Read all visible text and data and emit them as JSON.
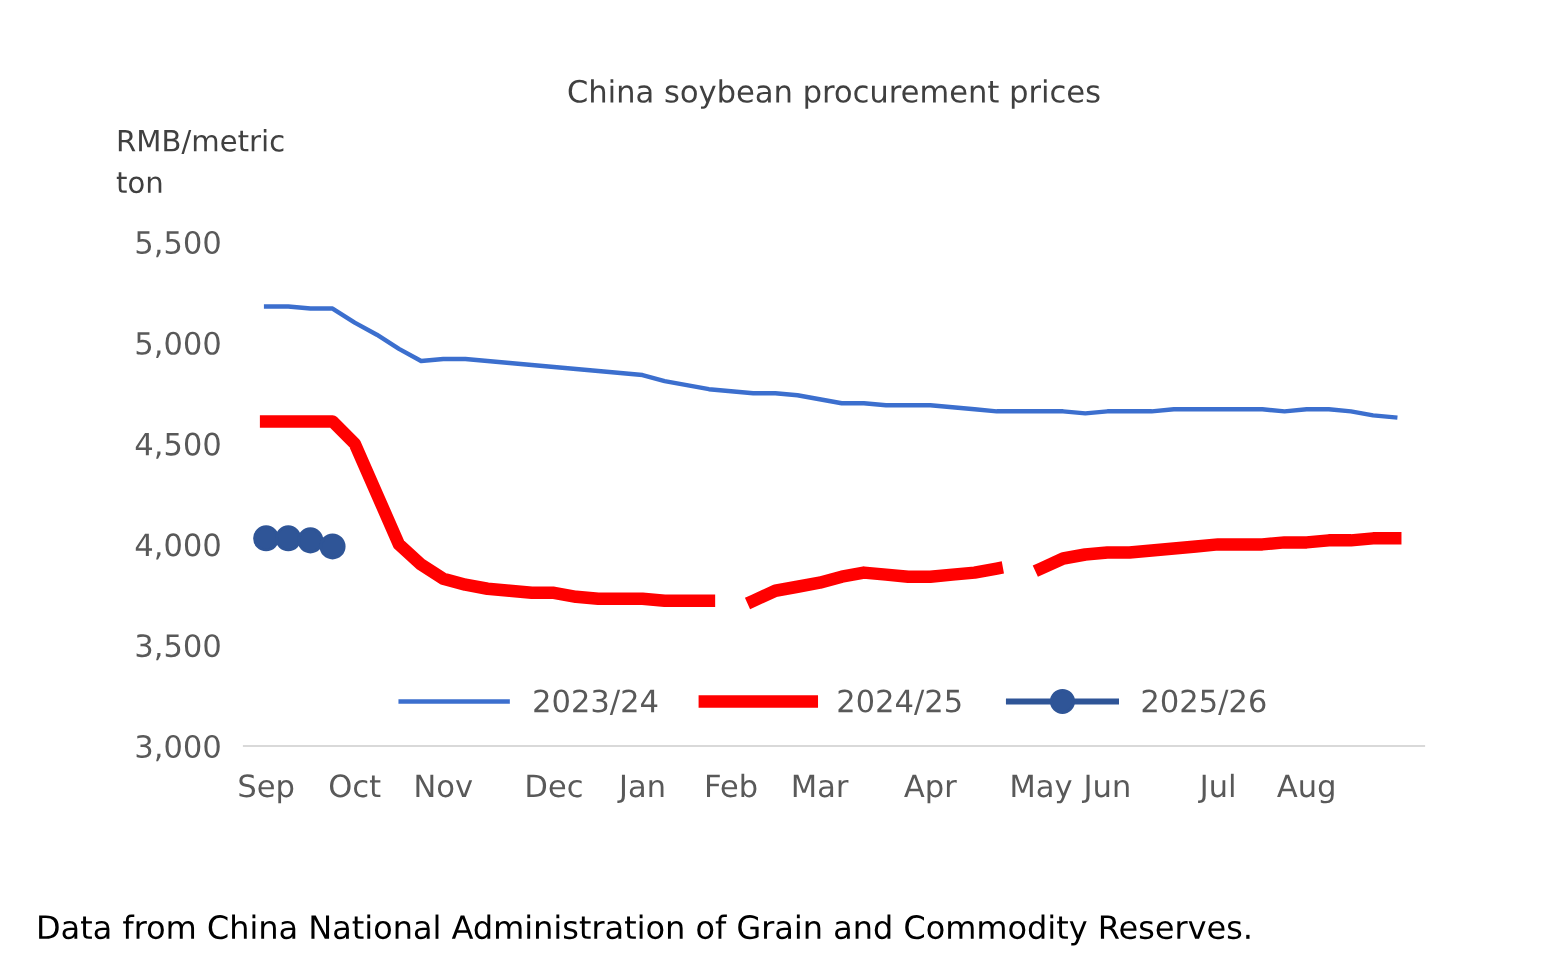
{
  "chart_data": {
    "type": "line",
    "title": "China soybean procurement prices",
    "ylabel": "RMB/metric\nton",
    "categories": [
      "Sep",
      null,
      null,
      null,
      "Oct",
      null,
      null,
      null,
      "Nov",
      null,
      null,
      null,
      null,
      "Dec",
      null,
      null,
      null,
      "Jan",
      null,
      null,
      null,
      "Feb",
      null,
      null,
      null,
      "Mar",
      null,
      null,
      null,
      null,
      "Apr",
      null,
      null,
      null,
      null,
      "May",
      null,
      null,
      "Jun",
      null,
      null,
      null,
      null,
      "Jul",
      null,
      null,
      null,
      "Aug",
      null,
      null,
      null,
      null
    ],
    "series": [
      {
        "name": "2023/24",
        "color": "#3c6fce",
        "values": [
          5180,
          5180,
          5170,
          5170,
          5100,
          5040,
          4970,
          4910,
          4920,
          4920,
          4910,
          4900,
          4890,
          4880,
          4870,
          4860,
          4850,
          4840,
          4810,
          4790,
          4770,
          4760,
          4750,
          4750,
          4740,
          4720,
          4700,
          4700,
          4690,
          4690,
          4690,
          4680,
          4670,
          4660,
          4660,
          4660,
          4660,
          4650,
          4660,
          4660,
          4660,
          4670,
          4670,
          4670,
          4670,
          4670,
          4660,
          4670,
          4670,
          4660,
          4640,
          4630
        ]
      },
      {
        "name": "2024/25",
        "color": "#ff0000",
        "values": [
          4610,
          4610,
          4610,
          4610,
          4500,
          4250,
          4000,
          3900,
          3830,
          3800,
          3780,
          3770,
          3760,
          3760,
          3740,
          3730,
          3730,
          3730,
          3720,
          3720,
          3720,
          null,
          3720,
          3770,
          3790,
          3810,
          3840,
          3860,
          3850,
          3840,
          3840,
          3850,
          3860,
          3880,
          null,
          3880,
          3930,
          3950,
          3960,
          3960,
          3970,
          3980,
          3990,
          4000,
          4000,
          4000,
          4010,
          4010,
          4020,
          4020,
          4030,
          4030
        ]
      },
      {
        "name": "2025/26",
        "type": "scatter",
        "color": "#2f5597",
        "marker": "circle",
        "values": [
          4030,
          4030,
          4020,
          3990,
          null,
          null,
          null,
          null,
          null,
          null,
          null,
          null,
          null,
          null,
          null,
          null,
          null,
          null,
          null,
          null,
          null,
          null,
          null,
          null,
          null,
          null,
          null,
          null,
          null,
          null,
          null,
          null,
          null,
          null,
          null,
          null,
          null,
          null,
          null,
          null,
          null,
          null,
          null,
          null,
          null,
          null,
          null,
          null,
          null,
          null,
          null,
          null
        ]
      }
    ],
    "ylim": [
      3000,
      5500
    ],
    "yticks": [
      {
        "value": 3000,
        "label": "3,000"
      },
      {
        "value": 3500,
        "label": "3,500"
      },
      {
        "value": 4000,
        "label": "4,000"
      },
      {
        "value": 4500,
        "label": "4,500"
      },
      {
        "value": 5000,
        "label": "5,000"
      },
      {
        "value": 5500,
        "label": "5,500"
      }
    ],
    "grid": false,
    "legend": "bottom",
    "annotations": [
      "Data from China National Administration of Grain and Commodity Reserves."
    ]
  }
}
